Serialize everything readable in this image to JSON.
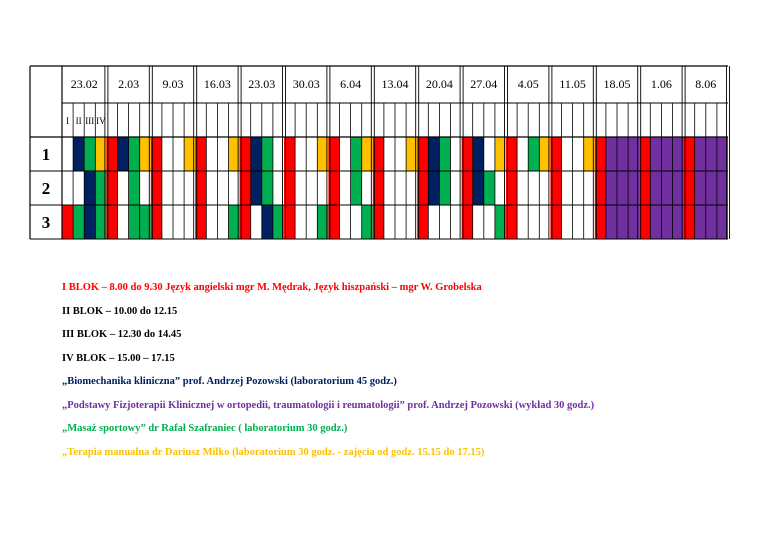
{
  "dates": [
    "23.02",
    "2.03",
    "9.03",
    "16.03",
    "23.03",
    "30.03",
    "6.04",
    "13.04",
    "20.04",
    "27.04",
    "4.05",
    "11.05",
    "18.05",
    "1.06",
    "8.06"
  ],
  "block_labels": [
    "I",
    "II",
    "III",
    "IV"
  ],
  "row_labels": [
    "1",
    "2",
    "3"
  ],
  "colors": {
    "red": "#ff0000",
    "navy": "#002060",
    "green": "#00b050",
    "yellow": "#ffc000",
    "purple": "#7030a0",
    "white": "#ffffff",
    "border": "#000000"
  },
  "grid": {
    "I": {
      "1": [
        "",
        "red",
        "red",
        "red",
        "red",
        "red",
        "red",
        "red",
        "red",
        "red",
        "red",
        "red",
        "red",
        "red",
        "red"
      ],
      "2": [
        "",
        "red",
        "red",
        "red",
        "red",
        "red",
        "red",
        "red",
        "red",
        "red",
        "red",
        "red",
        "red",
        "red",
        "red"
      ],
      "3": [
        "red",
        "red",
        "red",
        "red",
        "red",
        "red",
        "red",
        "red",
        "red",
        "red",
        "red",
        "red",
        "red",
        "red",
        "red"
      ]
    },
    "II": {
      "1": [
        "navy",
        "navy",
        "",
        "",
        "navy",
        "",
        "",
        "",
        "navy",
        "navy",
        "",
        "",
        "purple",
        "purple",
        "purple"
      ],
      "2": [
        "",
        "",
        "",
        "",
        "navy",
        "",
        "",
        "",
        "navy",
        "navy",
        "",
        "",
        "purple",
        "purple",
        "purple"
      ],
      "3": [
        "green",
        "",
        "",
        "",
        "",
        "",
        "",
        "",
        "",
        "",
        "",
        "",
        "purple",
        "purple",
        "purple"
      ]
    },
    "III": {
      "1": [
        "green",
        "green",
        "",
        "",
        "green",
        "",
        "green",
        "",
        "green",
        "",
        "green",
        "",
        "purple",
        "purple",
        "purple"
      ],
      "2": [
        "navy",
        "green",
        "",
        "",
        "green",
        "",
        "green",
        "",
        "green",
        "green",
        "",
        "",
        "purple",
        "purple",
        "purple"
      ],
      "3": [
        "navy",
        "green",
        "",
        "",
        "navy",
        "",
        "",
        "",
        "",
        "",
        "",
        "",
        "purple",
        "purple",
        "purple"
      ]
    },
    "IV": {
      "1": [
        "yellow",
        "yellow",
        "yellow",
        "yellow",
        "",
        "yellow",
        "yellow",
        "yellow",
        "",
        "yellow",
        "yellow",
        "yellow",
        "purple",
        "purple",
        "purple"
      ],
      "2": [
        "green",
        "",
        "",
        "",
        "",
        "",
        "",
        "",
        "",
        "",
        "",
        "",
        "purple",
        "purple",
        "purple"
      ],
      "3": [
        "green",
        "green",
        "",
        "green",
        "green",
        "green",
        "green",
        "",
        "",
        "green",
        "",
        "",
        "purple",
        "purple",
        "purple"
      ]
    }
  },
  "legend": [
    {
      "text": "I BLOK – 8.00 do 9.30   Język angielski mgr M. Mędrak, Język hiszpański – mgr W. Grobelska",
      "color": "#ff0000"
    },
    {
      "text": "II BLOK – 10.00 do 12.15",
      "color": "#000000"
    },
    {
      "text": "III BLOK – 12.30 do 14.45",
      "color": "#000000"
    },
    {
      "text": "IV BLOK – 15.00 – 17.15",
      "color": "#000000"
    },
    {
      "text": "„Biomechanika kliniczna” prof. Andrzej Pozowski (laboratorium 45 godz.)",
      "color": "#002060"
    },
    {
      "text": "„Podstawy Fizjoterapii Klinicznej w ortopedii, traumatologii i reumatologii” prof. Andrzej Pozowski (wykład 30 godz.)",
      "color": "#7030a0"
    },
    {
      "text": "„Masaż sportowy” dr Rafał Szafraniec ( laboratorium 30 godz.)",
      "color": "#00b050"
    },
    {
      "text": "„Terapia manualna dr Dariusz Milko (laboratorium 30 godz. - zajęcia od godz. 15.15 do 17.15)",
      "color": "#ffc000"
    }
  ]
}
